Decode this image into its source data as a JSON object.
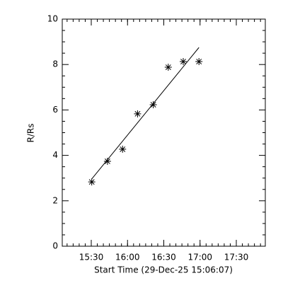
{
  "chart_data": {
    "type": "scatter",
    "xlabel": "Start Time (29-Dec-25 15:06:07)",
    "ylabel": "R/Rs",
    "x": [
      930.4,
      943.4,
      955.9,
      968.3,
      981.3,
      993.7,
      1006.1,
      1019.1
    ],
    "values": [
      2.83,
      3.74,
      4.27,
      5.83,
      6.23,
      7.88,
      8.13,
      8.13
    ],
    "fit": {
      "x": [
        930.4,
        1019.1
      ],
      "values": [
        2.96,
        8.75
      ]
    },
    "color": "#000000",
    "xlim": [
      906,
      1074
    ],
    "xticks": [
      {
        "value": 930,
        "label": "15:30"
      },
      {
        "value": 960,
        "label": "16:00"
      },
      {
        "value": 990,
        "label": "16:30"
      },
      {
        "value": 1020,
        "label": "17:00"
      },
      {
        "value": 1050,
        "label": "17:30"
      }
    ],
    "ylim": [
      0,
      10
    ],
    "yticks": [
      0,
      2,
      4,
      6,
      8,
      10
    ]
  }
}
